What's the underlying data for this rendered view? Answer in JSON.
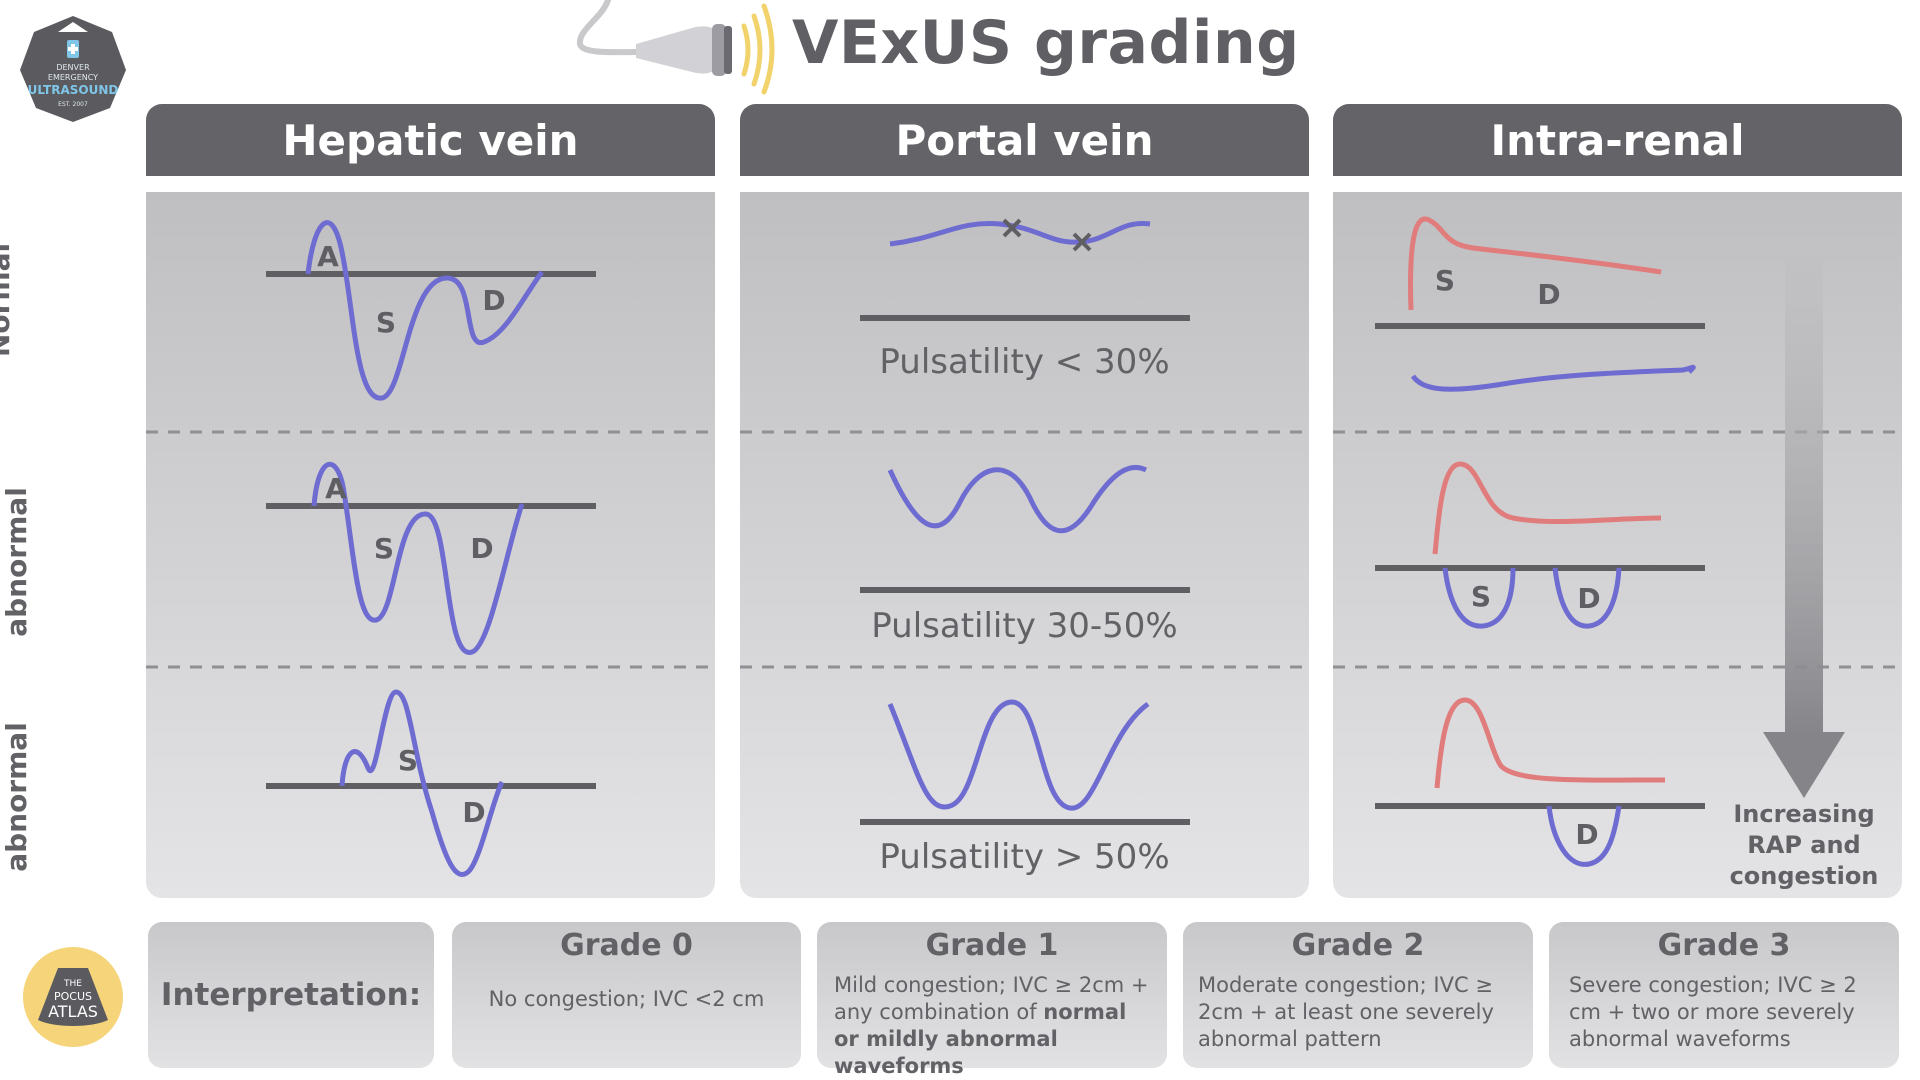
{
  "title": "VExUS grading",
  "logo_top": {
    "lines": [
      "DENVER",
      "EMERGENCY",
      "ULTRASOUND",
      "EST. 2007"
    ]
  },
  "logo_bottom": {
    "lines": [
      "THE",
      "POCUS",
      "ATLAS"
    ]
  },
  "columns": [
    "Hepatic vein",
    "Portal vein",
    "Intra-renal"
  ],
  "rows": [
    "Normal",
    "Mildly abnormal",
    "Severely abnormal"
  ],
  "hepatic_labels": {
    "a": "A",
    "s": "S",
    "d": "D"
  },
  "portal_pulsatility": [
    "Pulsatility < 30%",
    "Pulsatility 30-50%",
    "Pulsatility > 50%"
  ],
  "renal_labels": {
    "s": "S",
    "d": "D"
  },
  "arrow_label": [
    "Increasing",
    "RAP and",
    "congestion"
  ],
  "interpretation_label": "Interpretation:",
  "grades": [
    {
      "title": "Grade 0",
      "desc": "No congestion; IVC <2 cm"
    },
    {
      "title": "Grade 1",
      "desc_pre": "Mild congestion; IVC ≥ 2cm + any combination of ",
      "desc_bold": "normal or mildly abnormal waveforms"
    },
    {
      "title": "Grade 2",
      "desc": "Moderate congestion; IVC ≥ 2cm + at least one severely abnormal pattern"
    },
    {
      "title": "Grade 3",
      "desc": "Severe congestion; IVC ≥ 2 cm + two or more severely abnormal waveforms"
    }
  ],
  "colors": {
    "header": "#636368",
    "baseline": "#5e5e63",
    "vein_wave": "#6e6cd0",
    "artery_wave": "#e07c7c",
    "probe_signal": "#f2d36b",
    "logo_dark": "#5a5a5f",
    "pocus_circle": "#f5d47a"
  },
  "icons": [
    "ultrasound-probe-icon",
    "denver-ultrasound-logo",
    "pocus-atlas-logo"
  ]
}
